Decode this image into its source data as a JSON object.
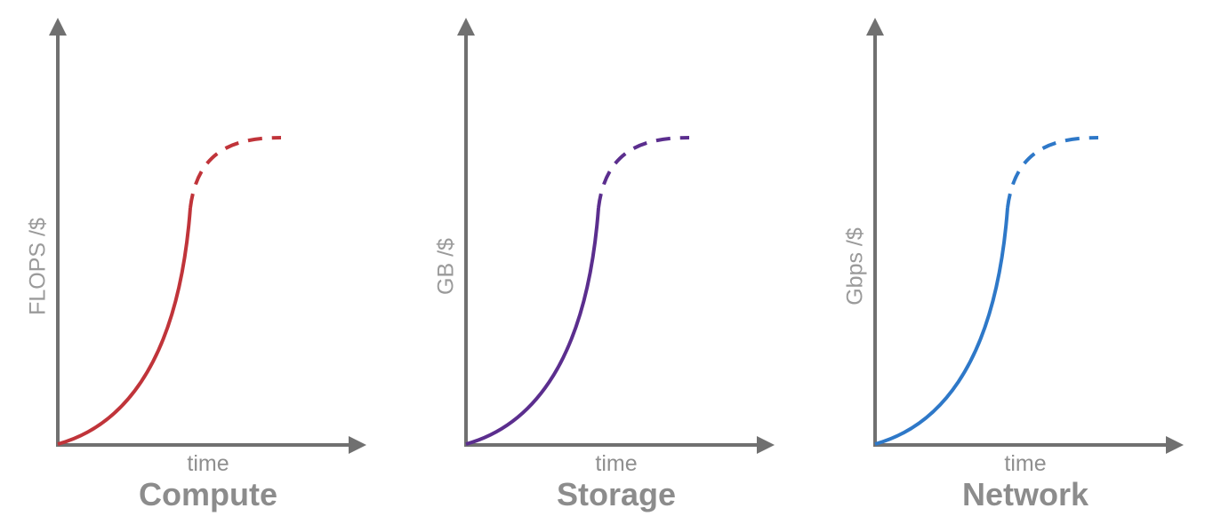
{
  "panels": [
    {
      "title": "Compute",
      "ylabel": "FLOPS /$",
      "xlabel": "time",
      "color": "#C0343A"
    },
    {
      "title": "Storage",
      "ylabel": "GB /$",
      "xlabel": "time",
      "color": "#5B2E8E"
    },
    {
      "title": "Network",
      "ylabel": "Gbps /$",
      "xlabel": "time",
      "color": "#2E78C8"
    }
  ],
  "axis_color": "#707070"
}
